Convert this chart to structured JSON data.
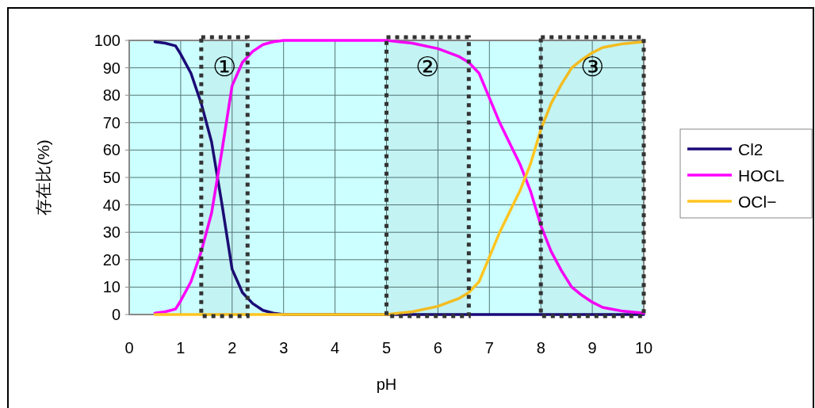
{
  "chart_data": {
    "type": "line",
    "ylabel": "存在比(%)",
    "xlabel": "pH",
    "xlim": [
      0,
      10
    ],
    "xticks": [
      0,
      1,
      2,
      3,
      4,
      5,
      6,
      7,
      8,
      9,
      10
    ],
    "ylim": [
      0,
      100
    ],
    "yticks": [
      0,
      10,
      20,
      30,
      40,
      50,
      60,
      70,
      80,
      90,
      100
    ],
    "grid": true,
    "legend": "right",
    "marker": "none",
    "line_style": "solid",
    "series": [
      {
        "name": "Cl2",
        "color": "#1a0a78",
        "x": [
          0.5,
          0.7,
          0.9,
          1.0,
          1.2,
          1.4,
          1.6,
          1.8,
          2.0,
          2.2,
          2.4,
          2.6,
          2.8,
          3.0,
          10
        ],
        "values": [
          99.5,
          99,
          98,
          95,
          88,
          77,
          63,
          40.5,
          16.5,
          8,
          4,
          1.5,
          0.5,
          0,
          0
        ]
      },
      {
        "name": "HOCL",
        "color": "#ff00ff",
        "x": [
          0.5,
          0.7,
          0.9,
          1.0,
          1.2,
          1.4,
          1.6,
          1.8,
          2.0,
          2.2,
          2.4,
          2.6,
          2.8,
          3.0,
          5.0,
          5.5,
          6.0,
          6.4,
          6.6,
          6.8,
          7.0,
          7.2,
          7.4,
          7.6,
          7.8,
          8.0,
          8.2,
          8.4,
          8.6,
          8.8,
          9.0,
          9.2,
          9.6,
          10
        ],
        "values": [
          0.5,
          1,
          2,
          5,
          12,
          23,
          37,
          59.5,
          83.5,
          92,
          96,
          98.5,
          99.5,
          100,
          100,
          99,
          97,
          94.2,
          92,
          88,
          79,
          70,
          62.3,
          54.6,
          45,
          32.5,
          23,
          16,
          10,
          7,
          4.5,
          2.6,
          1.2,
          0.5
        ]
      },
      {
        "name": "OCl−",
        "color": "#ffc520",
        "x": [
          0.5,
          5.0,
          5.5,
          6.0,
          6.4,
          6.6,
          6.8,
          7.0,
          7.2,
          7.4,
          7.6,
          7.8,
          8.0,
          8.2,
          8.4,
          8.6,
          8.8,
          9.0,
          9.2,
          9.6,
          10
        ],
        "values": [
          0,
          0,
          1,
          3,
          5.8,
          8,
          12,
          21,
          30,
          37.7,
          45.4,
          55,
          67.5,
          77,
          84,
          90,
          93,
          95.5,
          97.4,
          98.8,
          99.5
        ]
      }
    ],
    "bands": [
      {
        "axis": "x",
        "from": 1.4,
        "to": 2.3,
        "label": "①",
        "color": "#333333"
      },
      {
        "axis": "x",
        "from": 5,
        "to": 6.6,
        "label": "②",
        "color": "#333333"
      },
      {
        "axis": "x",
        "from": 8,
        "to": 10,
        "label": "③",
        "color": "#333333"
      }
    ]
  }
}
